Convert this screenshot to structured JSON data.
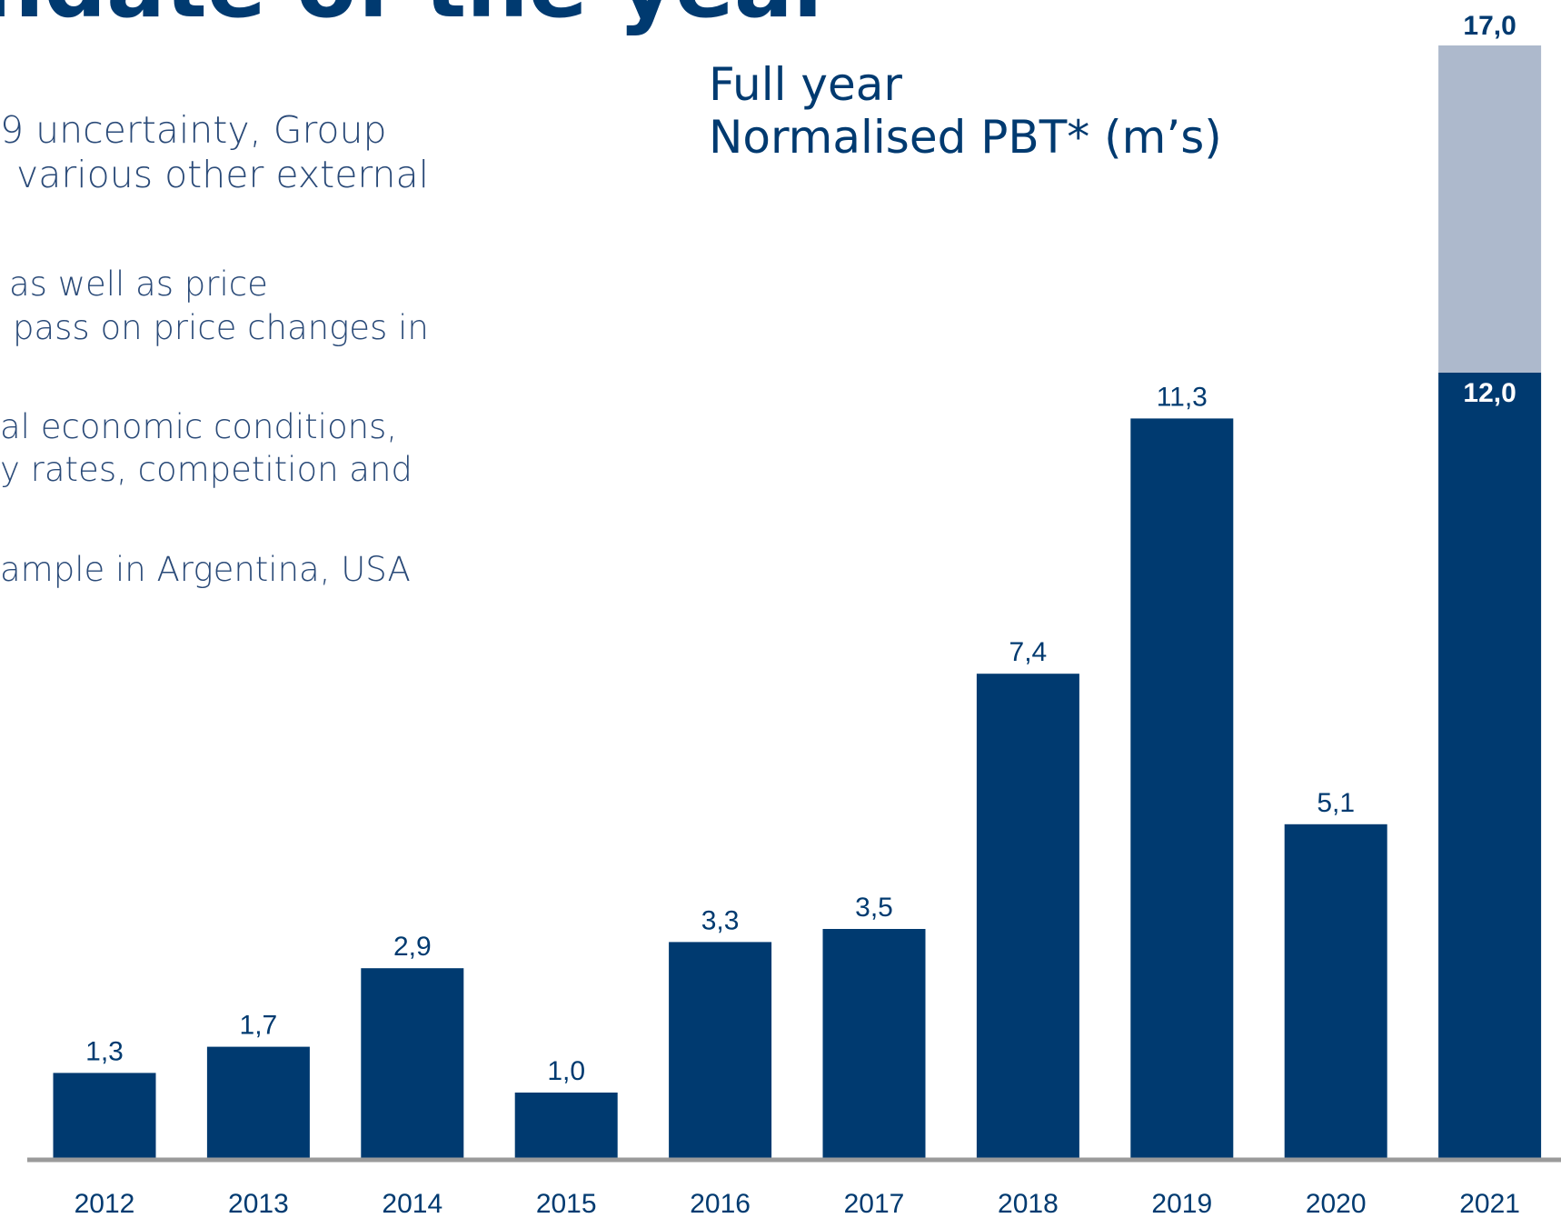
{
  "page": {
    "title": "ndate of the year",
    "body_lines": [
      "9 uncertainty, Group",
      "various other external",
      "as well as price",
      "pass on price changes in",
      "al economic conditions,",
      "y rates, competition and",
      "ample in Argentina, USA"
    ]
  },
  "chart_data": {
    "type": "bar",
    "title": [
      "Full year",
      "Normalised PBT* (m’s)"
    ],
    "categories": [
      "2012",
      "2013",
      "2014",
      "2015",
      "2016",
      "2017",
      "2018",
      "2019",
      "2020",
      "2021"
    ],
    "series": [
      {
        "color": "#003a70",
        "values": [
          1.3,
          1.7,
          2.9,
          1.0,
          3.3,
          3.5,
          7.4,
          11.3,
          5.1,
          12.0
        ],
        "value_labels": [
          "1,3",
          "1,7",
          "2,9",
          "1,0",
          "3,3",
          "3,5",
          "7,4",
          "11,3",
          "5,1",
          "12,0"
        ]
      },
      {
        "color": "#adb9cc",
        "values": [
          null,
          null,
          null,
          null,
          null,
          null,
          null,
          null,
          null,
          5.0
        ]
      }
    ],
    "total": {
      "value": 17.0,
      "label": "17,0"
    },
    "ylim": [
      0,
      17
    ],
    "stacked": true
  }
}
